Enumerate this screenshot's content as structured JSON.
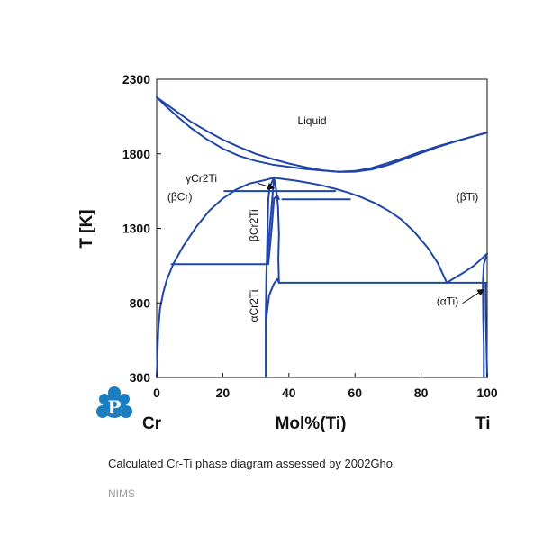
{
  "chart_data": {
    "type": "line",
    "title": "",
    "xlabel": "Mol%(Ti)",
    "ylabel": "T [K]",
    "xlim": [
      0,
      100
    ],
    "ylim": [
      300,
      2300
    ],
    "x_ticks": [
      "0",
      "20",
      "40",
      "60",
      "80",
      "100"
    ],
    "y_ticks": [
      "300",
      "800",
      "1300",
      "1800",
      "2300"
    ],
    "end_labels": {
      "left": "Cr",
      "right": "Ti"
    },
    "grid": false,
    "line_color": "#1f45a8",
    "region_labels": [
      {
        "text": "Liquid",
        "x": 47,
        "T": 1998
      },
      {
        "text": "(βCr)",
        "x": 7,
        "T": 1488
      },
      {
        "text": "(βTi)",
        "x": 94,
        "T": 1488
      },
      {
        "text": "γCr2Ti",
        "x": 13.5,
        "T": 1612
      },
      {
        "text": "βCr2Ti",
        "x": 30.5,
        "T": 1320,
        "rotated": true
      },
      {
        "text": "αCr2Ti",
        "x": 30.5,
        "T": 780,
        "rotated": true
      },
      {
        "text": "(αTi)",
        "x": 88,
        "T": 787
      }
    ],
    "arrows": [
      {
        "from": [
          30.5,
          1602
        ],
        "to": [
          35.5,
          1570
        ]
      },
      {
        "from": [
          92.5,
          797
        ],
        "to": [
          99,
          890
        ]
      }
    ],
    "series": [
      {
        "points": [
          [
            0,
            2180
          ],
          [
            5,
            2100
          ],
          [
            10,
            2020
          ],
          [
            15,
            1955
          ],
          [
            20,
            1895
          ],
          [
            25,
            1845
          ],
          [
            30,
            1800
          ],
          [
            35,
            1765
          ],
          [
            40,
            1735
          ],
          [
            45,
            1710
          ],
          [
            50,
            1690
          ],
          [
            55,
            1678
          ],
          [
            60,
            1680
          ],
          [
            65,
            1695
          ],
          [
            70,
            1725
          ],
          [
            75,
            1765
          ],
          [
            80,
            1805
          ],
          [
            85,
            1845
          ],
          [
            90,
            1880
          ],
          [
            95,
            1912
          ],
          [
            100,
            1943
          ]
        ]
      },
      {
        "points": [
          [
            0,
            2180
          ],
          [
            3,
            2115
          ],
          [
            6,
            2055
          ],
          [
            10,
            1980
          ],
          [
            15,
            1900
          ],
          [
            20,
            1835
          ],
          [
            25,
            1785
          ],
          [
            30,
            1752
          ],
          [
            35,
            1728
          ],
          [
            40,
            1712
          ],
          [
            45,
            1698
          ],
          [
            50,
            1688
          ],
          [
            55,
            1680
          ],
          [
            60,
            1685
          ],
          [
            65,
            1705
          ],
          [
            70,
            1738
          ],
          [
            75,
            1775
          ],
          [
            80,
            1815
          ],
          [
            85,
            1850
          ],
          [
            90,
            1882
          ],
          [
            95,
            1912
          ],
          [
            100,
            1943
          ]
        ]
      },
      {
        "points": [
          [
            0,
            300
          ],
          [
            0.5,
            620
          ],
          [
            1,
            760
          ],
          [
            2,
            870
          ],
          [
            3,
            950
          ],
          [
            5,
            1060
          ],
          [
            8,
            1180
          ],
          [
            12,
            1310
          ],
          [
            16,
            1420
          ],
          [
            20,
            1500
          ],
          [
            24,
            1560
          ],
          [
            28,
            1600
          ],
          [
            31,
            1615
          ],
          [
            33,
            1625
          ],
          [
            35.5,
            1640
          ]
        ]
      },
      {
        "points": [
          [
            35.5,
            1640
          ],
          [
            38,
            1632
          ],
          [
            42,
            1620
          ],
          [
            46,
            1605
          ],
          [
            50,
            1588
          ],
          [
            54,
            1565
          ],
          [
            58,
            1540
          ],
          [
            62,
            1508
          ],
          [
            66,
            1470
          ],
          [
            70,
            1420
          ],
          [
            74,
            1360
          ],
          [
            78,
            1275
          ],
          [
            82,
            1170
          ],
          [
            85,
            1070
          ],
          [
            87.8,
            935
          ]
        ]
      },
      {
        "points": [
          [
            87.8,
            935
          ],
          [
            90,
            965
          ],
          [
            93,
            1005
          ],
          [
            96,
            1050
          ],
          [
            98,
            1090
          ],
          [
            100,
            1130
          ]
        ]
      },
      {
        "points": [
          [
            99,
            300
          ],
          [
            99,
            500
          ],
          [
            98.8,
            700
          ],
          [
            98.7,
            935
          ],
          [
            99,
            1060
          ],
          [
            100,
            1130
          ]
        ]
      },
      {
        "points": [
          [
            100,
            300
          ],
          [
            99.8,
            500
          ],
          [
            99.6,
            700
          ],
          [
            99.5,
            935
          ]
        ]
      },
      {
        "points": [
          [
            20.5,
            1550
          ],
          [
            54,
            1550
          ]
        ]
      },
      {
        "points": [
          [
            38,
            1495
          ],
          [
            58.5,
            1495
          ]
        ]
      },
      {
        "points": [
          [
            4.5,
            1060
          ],
          [
            33.5,
            1060
          ]
        ]
      },
      {
        "points": [
          [
            37,
            935
          ],
          [
            100,
            935
          ]
        ]
      },
      {
        "points": [
          [
            33,
            300
          ],
          [
            33,
            700
          ],
          [
            33.2,
            1000
          ],
          [
            33.3,
            1060
          ],
          [
            33.5,
            1250
          ],
          [
            33.8,
            1500
          ],
          [
            34.2,
            1580
          ],
          [
            35.5,
            1640
          ]
        ]
      },
      {
        "points": [
          [
            33.3,
            1060
          ],
          [
            35.5,
            1640
          ]
        ]
      },
      {
        "points": [
          [
            33.8,
            1060
          ],
          [
            34.8,
            1300
          ],
          [
            35.5,
            1500
          ]
        ]
      },
      {
        "points": [
          [
            35.5,
            1640
          ],
          [
            36.2,
            1550
          ],
          [
            36.7,
            1450
          ],
          [
            37,
            1260
          ],
          [
            36.8,
            1100
          ],
          [
            37,
            935
          ]
        ]
      },
      {
        "points": [
          [
            35.5,
            1500
          ],
          [
            36.5,
            1520
          ],
          [
            37,
            1495
          ]
        ]
      },
      {
        "points": [
          [
            33.2,
            700
          ],
          [
            34,
            850
          ],
          [
            35.5,
            930
          ],
          [
            36.5,
            960
          ],
          [
            37,
            935
          ]
        ]
      }
    ]
  },
  "caption": "Calculated Cr-Ti phase diagram assessed by 2002Gho",
  "credit": "NIMS",
  "logo": {
    "letter": "P",
    "color": "#1a7ec0"
  }
}
